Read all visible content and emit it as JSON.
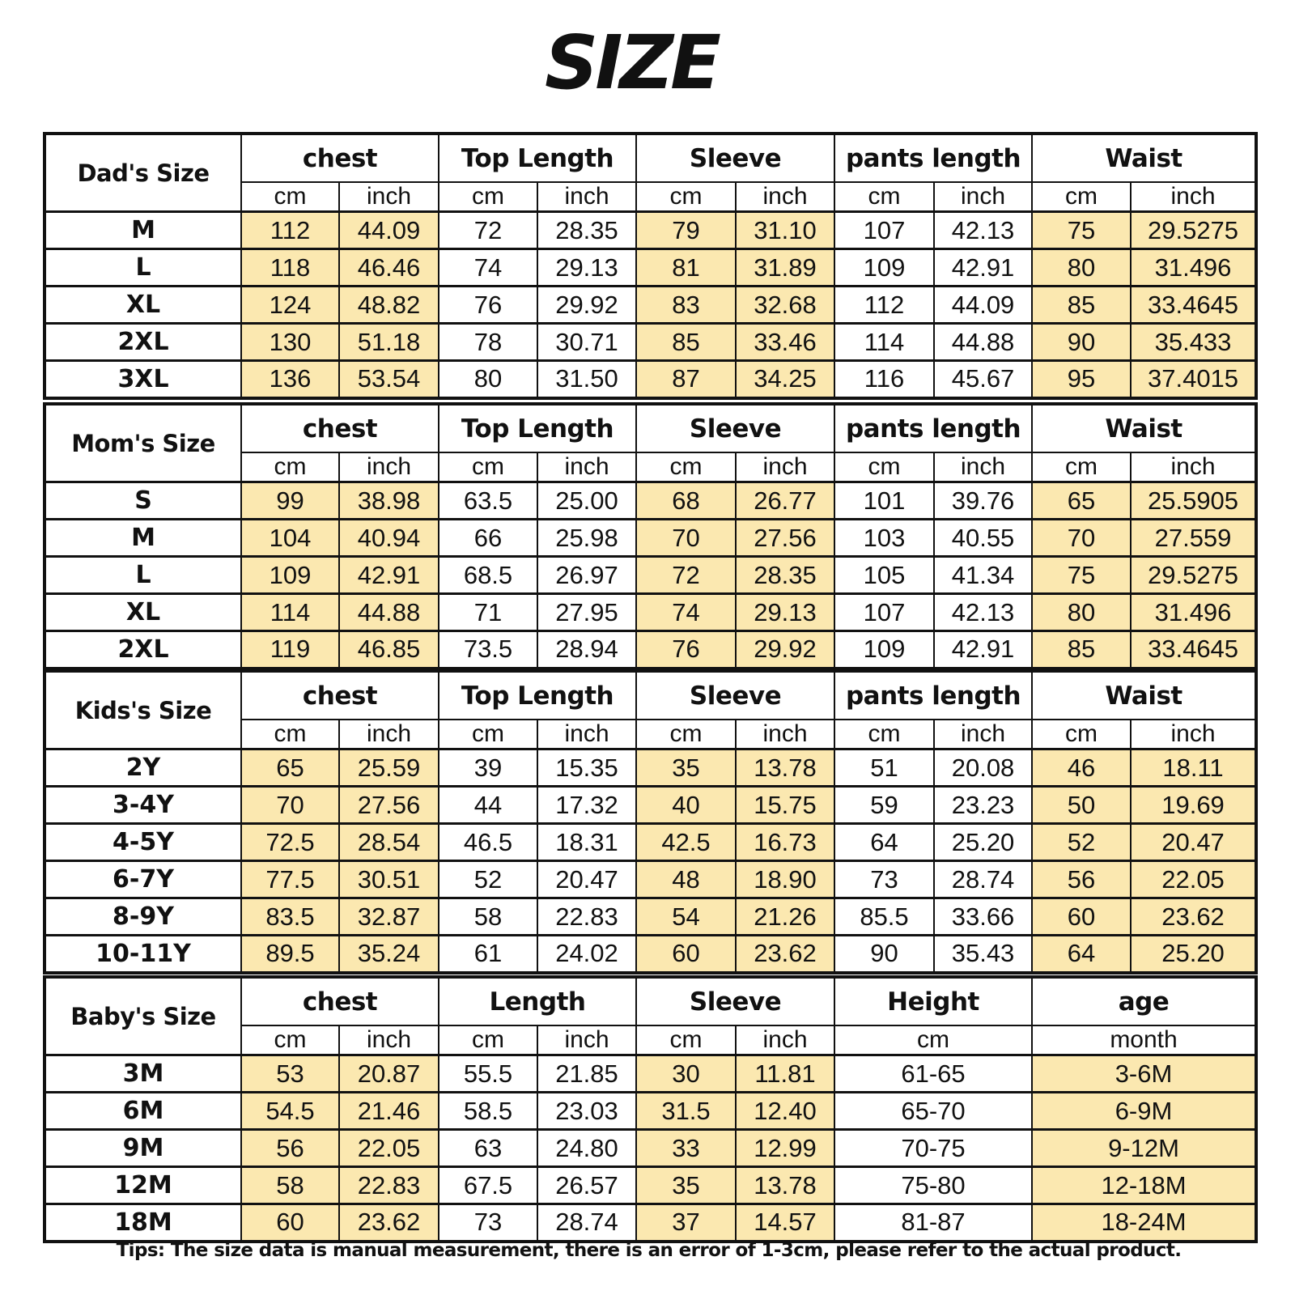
{
  "title": "SIZE",
  "highlight_color": "#fbe8b0",
  "sections": [
    {
      "label": "Dad's Size",
      "groups": [
        {
          "label": "chest",
          "units": [
            "cm",
            "inch"
          ],
          "highlight": true
        },
        {
          "label": "Top Length",
          "units": [
            "cm",
            "inch"
          ],
          "highlight": false
        },
        {
          "label": "Sleeve",
          "units": [
            "cm",
            "inch"
          ],
          "highlight": true
        },
        {
          "label": "pants length",
          "units": [
            "cm",
            "inch"
          ],
          "highlight": false
        },
        {
          "label": "Waist",
          "units": [
            "cm",
            "inch"
          ],
          "highlight": true
        }
      ],
      "rows": [
        {
          "size": "M",
          "values": [
            "112",
            "44.09",
            "72",
            "28.35",
            "79",
            "31.10",
            "107",
            "42.13",
            "75",
            "29.5275"
          ]
        },
        {
          "size": "L",
          "values": [
            "118",
            "46.46",
            "74",
            "29.13",
            "81",
            "31.89",
            "109",
            "42.91",
            "80",
            "31.496"
          ]
        },
        {
          "size": "XL",
          "values": [
            "124",
            "48.82",
            "76",
            "29.92",
            "83",
            "32.68",
            "112",
            "44.09",
            "85",
            "33.4645"
          ]
        },
        {
          "size": "2XL",
          "values": [
            "130",
            "51.18",
            "78",
            "30.71",
            "85",
            "33.46",
            "114",
            "44.88",
            "90",
            "35.433"
          ]
        },
        {
          "size": "3XL",
          "values": [
            "136",
            "53.54",
            "80",
            "31.50",
            "87",
            "34.25",
            "116",
            "45.67",
            "95",
            "37.4015"
          ]
        }
      ]
    },
    {
      "label": "Mom's Size",
      "groups": [
        {
          "label": "chest",
          "units": [
            "cm",
            "inch"
          ],
          "highlight": true
        },
        {
          "label": "Top Length",
          "units": [
            "cm",
            "inch"
          ],
          "highlight": false
        },
        {
          "label": "Sleeve",
          "units": [
            "cm",
            "inch"
          ],
          "highlight": true
        },
        {
          "label": "pants length",
          "units": [
            "cm",
            "inch"
          ],
          "highlight": false
        },
        {
          "label": "Waist",
          "units": [
            "cm",
            "inch"
          ],
          "highlight": true
        }
      ],
      "rows": [
        {
          "size": "S",
          "values": [
            "99",
            "38.98",
            "63.5",
            "25.00",
            "68",
            "26.77",
            "101",
            "39.76",
            "65",
            "25.5905"
          ]
        },
        {
          "size": "M",
          "values": [
            "104",
            "40.94",
            "66",
            "25.98",
            "70",
            "27.56",
            "103",
            "40.55",
            "70",
            "27.559"
          ]
        },
        {
          "size": "L",
          "values": [
            "109",
            "42.91",
            "68.5",
            "26.97",
            "72",
            "28.35",
            "105",
            "41.34",
            "75",
            "29.5275"
          ]
        },
        {
          "size": "XL",
          "values": [
            "114",
            "44.88",
            "71",
            "27.95",
            "74",
            "29.13",
            "107",
            "42.13",
            "80",
            "31.496"
          ]
        },
        {
          "size": "2XL",
          "values": [
            "119",
            "46.85",
            "73.5",
            "28.94",
            "76",
            "29.92",
            "109",
            "42.91",
            "85",
            "33.4645"
          ]
        }
      ]
    },
    {
      "label": "Kids's Size",
      "groups": [
        {
          "label": "chest",
          "units": [
            "cm",
            "inch"
          ],
          "highlight": true
        },
        {
          "label": "Top Length",
          "units": [
            "cm",
            "inch"
          ],
          "highlight": false
        },
        {
          "label": "Sleeve",
          "units": [
            "cm",
            "inch"
          ],
          "highlight": true
        },
        {
          "label": "pants length",
          "units": [
            "cm",
            "inch"
          ],
          "highlight": false
        },
        {
          "label": "Waist",
          "units": [
            "cm",
            "inch"
          ],
          "highlight": true
        }
      ],
      "rows": [
        {
          "size": "2Y",
          "values": [
            "65",
            "25.59",
            "39",
            "15.35",
            "35",
            "13.78",
            "51",
            "20.08",
            "46",
            "18.11"
          ]
        },
        {
          "size": "3-4Y",
          "values": [
            "70",
            "27.56",
            "44",
            "17.32",
            "40",
            "15.75",
            "59",
            "23.23",
            "50",
            "19.69"
          ]
        },
        {
          "size": "4-5Y",
          "values": [
            "72.5",
            "28.54",
            "46.5",
            "18.31",
            "42.5",
            "16.73",
            "64",
            "25.20",
            "52",
            "20.47"
          ]
        },
        {
          "size": "6-7Y",
          "values": [
            "77.5",
            "30.51",
            "52",
            "20.47",
            "48",
            "18.90",
            "73",
            "28.74",
            "56",
            "22.05"
          ]
        },
        {
          "size": "8-9Y",
          "values": [
            "83.5",
            "32.87",
            "58",
            "22.83",
            "54",
            "21.26",
            "85.5",
            "33.66",
            "60",
            "23.62"
          ]
        },
        {
          "size": "10-11Y",
          "values": [
            "89.5",
            "35.24",
            "61",
            "24.02",
            "60",
            "23.62",
            "90",
            "35.43",
            "64",
            "25.20"
          ]
        }
      ]
    },
    {
      "label": "Baby's Size",
      "groups": [
        {
          "label": "chest",
          "units": [
            "cm",
            "inch"
          ],
          "highlight": true
        },
        {
          "label": "Length",
          "units": [
            "cm",
            "inch"
          ],
          "highlight": false
        },
        {
          "label": "Sleeve",
          "units": [
            "cm",
            "inch"
          ],
          "highlight": true
        },
        {
          "label": "Height",
          "units": [
            "cm"
          ],
          "highlight": false
        },
        {
          "label": "age",
          "units": [
            "month"
          ],
          "highlight": true
        }
      ],
      "rows": [
        {
          "size": "3M",
          "values": [
            "53",
            "20.87",
            "55.5",
            "21.85",
            "30",
            "11.81",
            "61-65",
            "3-6M"
          ]
        },
        {
          "size": "6M",
          "values": [
            "54.5",
            "21.46",
            "58.5",
            "23.03",
            "31.5",
            "12.40",
            "65-70",
            "6-9M"
          ]
        },
        {
          "size": "9M",
          "values": [
            "56",
            "22.05",
            "63",
            "24.80",
            "33",
            "12.99",
            "70-75",
            "9-12M"
          ]
        },
        {
          "size": "12M",
          "values": [
            "58",
            "22.83",
            "67.5",
            "26.57",
            "35",
            "13.78",
            "75-80",
            "12-18M"
          ]
        },
        {
          "size": "18M",
          "values": [
            "60",
            "23.62",
            "73",
            "28.74",
            "37",
            "14.57",
            "81-87",
            "18-24M"
          ]
        }
      ]
    }
  ],
  "tips": "Tips: The size data is manual measurement, there is an error of 1-3cm, please refer to the actual product."
}
